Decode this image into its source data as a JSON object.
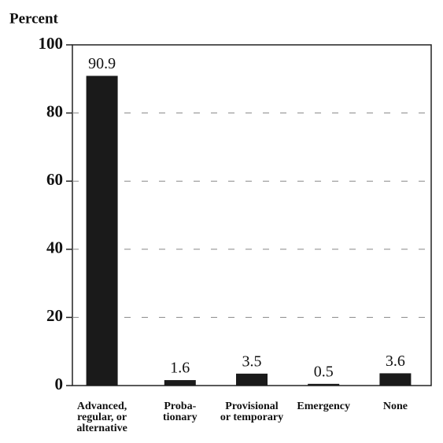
{
  "chart_data": {
    "type": "bar",
    "y_label": "Percent",
    "categories": [
      [
        "Advanced,",
        "regular, or",
        "alternative"
      ],
      [
        "Proba-",
        "tionary"
      ],
      [
        "Provisional",
        "or temporary"
      ],
      [
        "Emergency"
      ],
      [
        "None"
      ]
    ],
    "values": [
      90.9,
      1.6,
      3.5,
      0.5,
      3.6
    ],
    "color": "#1a1a1a",
    "ylim": [
      0,
      100
    ],
    "yticks": [
      0,
      20,
      40,
      60,
      80,
      100
    ],
    "grid": true
  }
}
